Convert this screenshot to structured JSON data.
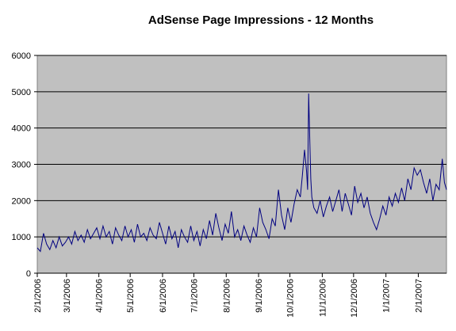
{
  "chart_data": {
    "type": "line",
    "title": "AdSense Page Impressions - 12 Months",
    "xlabel": "",
    "ylabel": "",
    "x_range": [
      "2006-02-01",
      "2007-02-28"
    ],
    "ylim": [
      0,
      6000
    ],
    "y_ticks": [
      0,
      1000,
      2000,
      3000,
      4000,
      5000,
      6000
    ],
    "x_ticks": [
      "2/1/2006",
      "3/1/2006",
      "4/1/2006",
      "5/1/2006",
      "6/1/2006",
      "7/1/2006",
      "8/1/2006",
      "9/1/2006",
      "10/1/2006",
      "11/1/2006",
      "12/1/2006",
      "1/1/2007",
      "2/1/2007"
    ],
    "grid": "horizontal",
    "legend": "none",
    "plot_background": "#c0c0c0",
    "line_color": "#000080",
    "series": [
      {
        "x": [
          "2006-02-01",
          "2006-02-04",
          "2006-02-07",
          "2006-02-10",
          "2006-02-13",
          "2006-02-16",
          "2006-02-19",
          "2006-02-22",
          "2006-02-25",
          "2006-02-28",
          "2006-03-03",
          "2006-03-06",
          "2006-03-09",
          "2006-03-12",
          "2006-03-15",
          "2006-03-18",
          "2006-03-21",
          "2006-03-24",
          "2006-03-27",
          "2006-03-30",
          "2006-04-02",
          "2006-04-05",
          "2006-04-08",
          "2006-04-11",
          "2006-04-14",
          "2006-04-17",
          "2006-04-20",
          "2006-04-23",
          "2006-04-26",
          "2006-04-29",
          "2006-05-02",
          "2006-05-05",
          "2006-05-08",
          "2006-05-11",
          "2006-05-14",
          "2006-05-17",
          "2006-05-20",
          "2006-05-23",
          "2006-05-26",
          "2006-05-29",
          "2006-06-01",
          "2006-06-04",
          "2006-06-07",
          "2006-06-10",
          "2006-06-13",
          "2006-06-16",
          "2006-06-19",
          "2006-06-22",
          "2006-06-25",
          "2006-06-28",
          "2006-07-01",
          "2006-07-04",
          "2006-07-07",
          "2006-07-10",
          "2006-07-13",
          "2006-07-16",
          "2006-07-19",
          "2006-07-22",
          "2006-07-25",
          "2006-07-28",
          "2006-07-31",
          "2006-08-03",
          "2006-08-06",
          "2006-08-09",
          "2006-08-12",
          "2006-08-15",
          "2006-08-18",
          "2006-08-21",
          "2006-08-24",
          "2006-08-27",
          "2006-08-30",
          "2006-09-02",
          "2006-09-05",
          "2006-09-08",
          "2006-09-11",
          "2006-09-14",
          "2006-09-17",
          "2006-09-20",
          "2006-09-23",
          "2006-09-26",
          "2006-09-29",
          "2006-10-02",
          "2006-10-05",
          "2006-10-08",
          "2006-10-11",
          "2006-10-13",
          "2006-10-15",
          "2006-10-17",
          "2006-10-18",
          "2006-10-19",
          "2006-10-20",
          "2006-10-21",
          "2006-10-22",
          "2006-10-24",
          "2006-10-27",
          "2006-10-30",
          "2006-11-02",
          "2006-11-05",
          "2006-11-08",
          "2006-11-11",
          "2006-11-14",
          "2006-11-17",
          "2006-11-20",
          "2006-11-23",
          "2006-11-26",
          "2006-11-29",
          "2006-12-02",
          "2006-12-05",
          "2006-12-08",
          "2006-12-11",
          "2006-12-14",
          "2006-12-17",
          "2006-12-20",
          "2006-12-23",
          "2006-12-26",
          "2006-12-29",
          "2007-01-01",
          "2007-01-04",
          "2007-01-07",
          "2007-01-10",
          "2007-01-13",
          "2007-01-16",
          "2007-01-19",
          "2007-01-22",
          "2007-01-25",
          "2007-01-28",
          "2007-01-31",
          "2007-02-03",
          "2007-02-06",
          "2007-02-09",
          "2007-02-12",
          "2007-02-15",
          "2007-02-18",
          "2007-02-21",
          "2007-02-24",
          "2007-02-26",
          "2007-02-28"
        ],
        "y": [
          700,
          600,
          1100,
          800,
          650,
          900,
          700,
          1000,
          750,
          850,
          1000,
          800,
          1150,
          900,
          1050,
          850,
          1200,
          950,
          1100,
          1250,
          950,
          1300,
          1000,
          1150,
          800,
          1250,
          1050,
          900,
          1300,
          1000,
          1200,
          850,
          1350,
          1000,
          1100,
          900,
          1250,
          1050,
          950,
          1400,
          1100,
          800,
          1300,
          950,
          1150,
          700,
          1200,
          1000,
          850,
          1300,
          900,
          1150,
          750,
          1200,
          950,
          1450,
          1050,
          1650,
          1250,
          900,
          1350,
          1100,
          1700,
          1000,
          1200,
          900,
          1300,
          1050,
          850,
          1250,
          1000,
          1800,
          1400,
          1200,
          950,
          1500,
          1300,
          2300,
          1600,
          1200,
          1800,
          1400,
          1900,
          2300,
          2100,
          2700,
          3400,
          2800,
          2300,
          4950,
          3700,
          2600,
          2100,
          1800,
          1650,
          2000,
          1550,
          1850,
          2100,
          1700,
          2000,
          2300,
          1700,
          2200,
          1900,
          1600,
          2400,
          1950,
          2200,
          1800,
          2100,
          1650,
          1400,
          1200,
          1500,
          1850,
          1600,
          2100,
          1850,
          2200,
          1950,
          2350,
          2000,
          2600,
          2300,
          2900,
          2700,
          2850,
          2500,
          2200,
          2600,
          2000,
          2450,
          2300,
          3150,
          2500,
          2300
        ]
      }
    ]
  }
}
